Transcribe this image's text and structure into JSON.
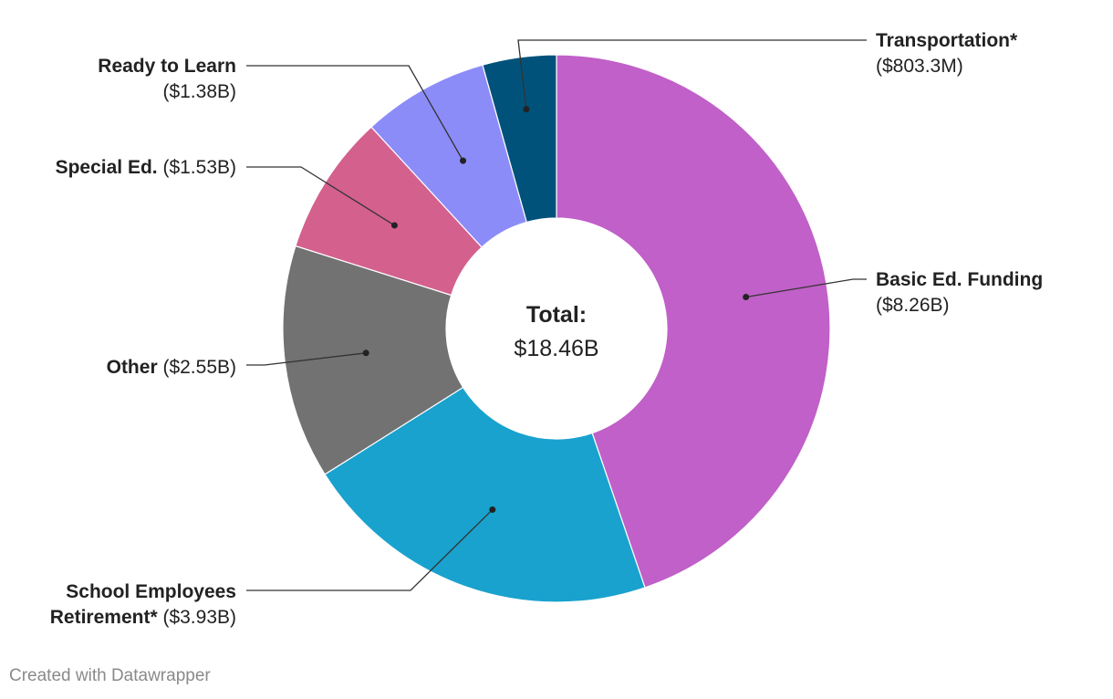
{
  "chart_data": {
    "type": "pie",
    "variant": "donut",
    "center_label": {
      "title": "Total:",
      "value": "$18.46B"
    },
    "slices": [
      {
        "name": "Basic Ed. Funding",
        "value": 8.26,
        "value_label": "($8.26B)",
        "color": "#c060c8"
      },
      {
        "name": "School Employees Retirement*",
        "value": 3.93,
        "value_label": "($3.93B)",
        "color": "#19a2ce"
      },
      {
        "name": "Other",
        "value": 2.55,
        "value_label": "($2.55B)",
        "color": "#727272"
      },
      {
        "name": "Special Ed.",
        "value": 1.53,
        "value_label": "($1.53B)",
        "color": "#d4608e"
      },
      {
        "name": "Ready to Learn",
        "value": 1.38,
        "value_label": "($1.38B)",
        "color": "#8c8cf8"
      },
      {
        "name": "Transportation*",
        "value": 0.8033,
        "value_label": "($803.3M)",
        "color": "#00527a"
      }
    ]
  },
  "footer": {
    "credit": "Created with Datawrapper"
  }
}
